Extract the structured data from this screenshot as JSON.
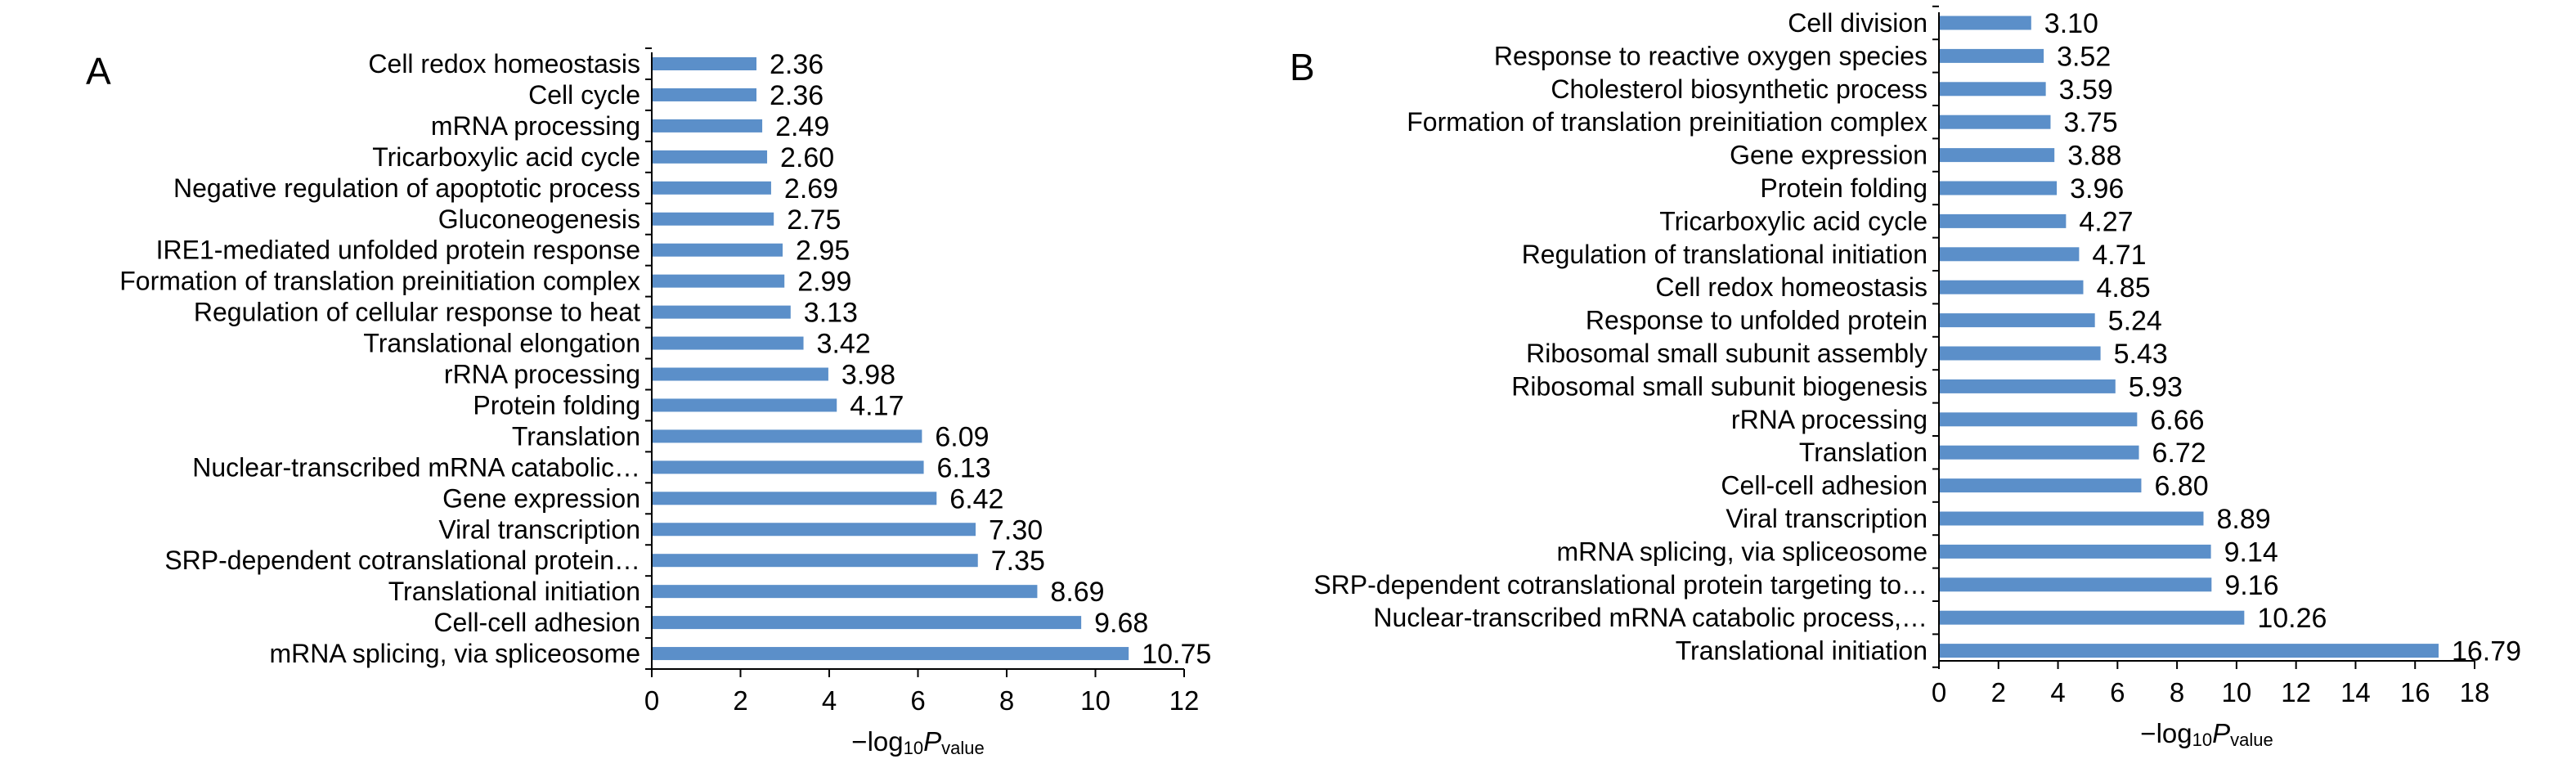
{
  "colors": {
    "bar": "#5b8fc9",
    "axis": "#000000",
    "text": "#000000"
  },
  "chart_data": [
    {
      "type": "bar",
      "orientation": "horizontal",
      "panel": "A",
      "xlabel": {
        "prefix": "−log",
        "sub": "10",
        "italic": "P",
        "sub2": "value"
      },
      "xlim": [
        0,
        12
      ],
      "xticks": [
        "0",
        "2",
        "4",
        "6",
        "8",
        "10",
        "12"
      ],
      "categories": [
        "Cell redox homeostasis",
        "Cell cycle",
        "mRNA processing",
        "Tricarboxylic acid cycle",
        "Negative regulation of apoptotic process",
        "Gluconeogenesis",
        "IRE1-mediated unfolded protein response",
        "Formation of translation preinitiation complex",
        "Regulation of cellular response to heat",
        "Translational elongation",
        "rRNA processing",
        "Protein folding",
        "Translation",
        "Nuclear-transcribed mRNA catabolic…",
        "Gene expression",
        "Viral transcription",
        "SRP-dependent cotranslational protein…",
        "Translational initiation",
        "Cell-cell adhesion",
        "mRNA splicing, via spliceosome"
      ],
      "values": [
        2.36,
        2.36,
        2.49,
        2.6,
        2.69,
        2.75,
        2.95,
        2.99,
        3.13,
        3.42,
        3.98,
        4.17,
        6.09,
        6.13,
        6.42,
        7.3,
        7.35,
        8.69,
        9.68,
        10.75
      ],
      "value_labels": [
        "2.36",
        "2.36",
        "2.49",
        "2.60",
        "2.69",
        "2.75",
        "2.95",
        "2.99",
        "3.13",
        "3.42",
        "3.98",
        "4.17",
        "6.09",
        "6.13",
        "6.42",
        "7.30",
        "7.35",
        "8.69",
        "9.68",
        "10.75"
      ]
    },
    {
      "type": "bar",
      "orientation": "horizontal",
      "panel": "B",
      "xlabel": {
        "prefix": "−log",
        "sub": "10",
        "italic": "P",
        "sub2": "value"
      },
      "xlim": [
        0,
        18
      ],
      "xticks": [
        "0",
        "2",
        "4",
        "6",
        "8",
        "10",
        "12",
        "14",
        "16",
        "18"
      ],
      "categories": [
        "Cell division",
        "Response to reactive oxygen species",
        "Cholesterol biosynthetic process",
        "Formation of translation preinitiation complex",
        "Gene expression",
        "Protein folding",
        "Tricarboxylic acid cycle",
        "Regulation of translational initiation",
        "Cell redox homeostasis",
        "Response to unfolded protein",
        "Ribosomal small subunit assembly",
        "Ribosomal small subunit biogenesis",
        "rRNA processing",
        "Translation",
        "Cell-cell adhesion",
        "Viral transcription",
        "mRNA splicing, via spliceosome",
        "SRP-dependent cotranslational protein targeting to…",
        "Nuclear-transcribed mRNA catabolic process,…",
        "Translational initiation"
      ],
      "values": [
        3.1,
        3.52,
        3.59,
        3.75,
        3.88,
        3.96,
        4.27,
        4.71,
        4.85,
        5.24,
        5.43,
        5.93,
        6.66,
        6.72,
        6.8,
        8.89,
        9.14,
        9.16,
        10.26,
        16.79
      ],
      "value_labels": [
        "3.10",
        "3.52",
        "3.59",
        "3.75",
        "3.88",
        "3.96",
        "4.27",
        "4.71",
        "4.85",
        "5.24",
        "5.43",
        "5.93",
        "6.66",
        "6.72",
        "6.80",
        "8.89",
        "9.14",
        "9.16",
        "10.26",
        "16.79"
      ]
    }
  ]
}
